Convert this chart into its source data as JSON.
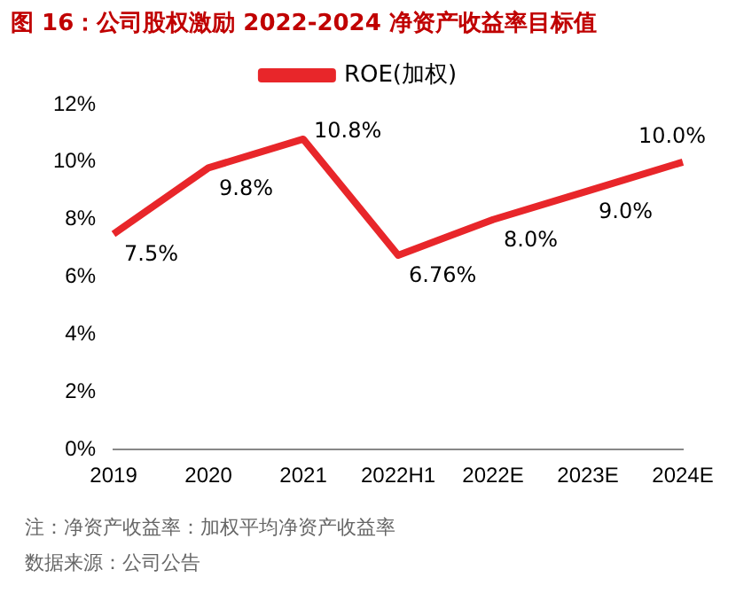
{
  "chart_data": {
    "type": "line",
    "title": "图 16：公司股权激励 2022-2024 净资产收益率目标值",
    "categories": [
      "2019",
      "2020",
      "2021",
      "2022H1",
      "2022E",
      "2023E",
      "2024E"
    ],
    "series": [
      {
        "name": "ROE(加权)",
        "color": "#e8262a",
        "values": [
          7.5,
          9.8,
          10.8,
          6.76,
          8.0,
          9.0,
          10.0
        ]
      }
    ],
    "value_labels": [
      "7.5%",
      "9.8%",
      "10.8%",
      "6.76%",
      "8.0%",
      "9.0%",
      "10.0%"
    ],
    "ylim": [
      0,
      12
    ],
    "yticks": [
      {
        "value": 0,
        "label": "0%"
      },
      {
        "value": 2,
        "label": "2%"
      },
      {
        "value": 4,
        "label": "4%"
      },
      {
        "value": 6,
        "label": "6%"
      },
      {
        "value": 8,
        "label": "8%"
      },
      {
        "value": 10,
        "label": "10%"
      },
      {
        "value": 12,
        "label": "12%"
      }
    ],
    "grid": false,
    "legend": "top",
    "marker": "none",
    "line_style": "solid",
    "annotations": [
      "注：净资产收益率：加权平均净资产收益率",
      "数据来源：公司公告"
    ]
  }
}
